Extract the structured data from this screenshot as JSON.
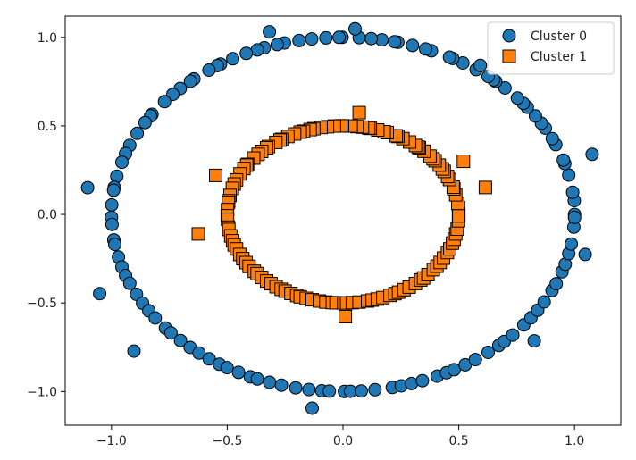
{
  "chart_data": {
    "type": "scatter",
    "title": "",
    "xlabel": "",
    "ylabel": "",
    "xlim": [
      -1.2,
      1.2
    ],
    "ylim": [
      -1.19,
      1.12
    ],
    "xticks": [
      -1.0,
      -0.5,
      0.0,
      0.5,
      1.0
    ],
    "xtick_labels": [
      "−1.0",
      "−0.5",
      "0.0",
      "0.5",
      "1.0"
    ],
    "yticks": [
      -1.0,
      -0.5,
      0.0,
      0.5,
      1.0
    ],
    "ytick_labels": [
      "−1.0",
      "−0.5",
      "0.0",
      "0.5",
      "1.0"
    ],
    "grid": false,
    "legend_position": "top-right",
    "series": [
      {
        "name": "Cluster 0",
        "marker": "circle",
        "color": "#1f77b4",
        "points": [
          [
            1.0,
            0.0
          ],
          [
            0.999,
            0.078
          ],
          [
            0.992,
            0.125
          ],
          [
            0.975,
            0.222
          ],
          [
            0.958,
            0.287
          ],
          [
            0.952,
            0.307
          ],
          [
            0.919,
            0.394
          ],
          [
            0.904,
            0.428
          ],
          [
            0.874,
            0.487
          ],
          [
            0.857,
            0.515
          ],
          [
            0.831,
            0.556
          ],
          [
            0.796,
            0.605
          ],
          [
            0.779,
            0.627
          ],
          [
            0.753,
            0.657
          ],
          [
            0.7,
            0.714
          ],
          [
            0.66,
            0.751
          ],
          [
            0.651,
            0.76
          ],
          [
            0.627,
            0.779
          ],
          [
            0.575,
            0.818
          ],
          [
            0.518,
            0.855
          ],
          [
            0.474,
            0.881
          ],
          [
            0.46,
            0.888
          ],
          [
            0.382,
            0.924
          ],
          [
            0.357,
            0.934
          ],
          [
            0.3,
            0.954
          ],
          [
            0.237,
            0.972
          ],
          [
            0.223,
            0.975
          ],
          [
            0.168,
            0.986
          ],
          [
            0.122,
            0.993
          ],
          [
            0.07,
            0.998
          ],
          [
            -0.004,
            1.0
          ],
          [
            -0.017,
            1.0
          ],
          [
            -0.074,
            0.997
          ],
          [
            -0.135,
            0.991
          ],
          [
            -0.19,
            0.982
          ],
          [
            -0.253,
            0.968
          ],
          [
            -0.284,
            0.959
          ],
          [
            -0.34,
            0.941
          ],
          [
            -0.37,
            0.929
          ],
          [
            -0.418,
            0.909
          ],
          [
            -0.476,
            0.879
          ],
          [
            -0.529,
            0.849
          ],
          [
            -0.543,
            0.84
          ],
          [
            -0.579,
            0.815
          ],
          [
            -0.644,
            0.765
          ],
          [
            -0.659,
            0.752
          ],
          [
            -0.703,
            0.711
          ],
          [
            -0.735,
            0.678
          ],
          [
            -0.771,
            0.637
          ],
          [
            -0.825,
            0.565
          ],
          [
            -0.831,
            0.556
          ],
          [
            -0.855,
            0.519
          ],
          [
            -0.889,
            0.458
          ],
          [
            -0.921,
            0.39
          ],
          [
            -0.939,
            0.344
          ],
          [
            -0.955,
            0.295
          ],
          [
            -0.977,
            0.215
          ],
          [
            -0.988,
            0.153
          ],
          [
            -0.991,
            0.137
          ],
          [
            -0.999,
            0.054
          ],
          [
            -1.0,
            -0.016
          ],
          [
            -0.998,
            -0.056
          ],
          [
            -0.99,
            -0.144
          ],
          [
            -0.986,
            -0.169
          ],
          [
            -0.97,
            -0.241
          ],
          [
            -0.955,
            -0.297
          ],
          [
            -0.939,
            -0.345
          ],
          [
            -0.921,
            -0.389
          ],
          [
            -0.892,
            -0.451
          ],
          [
            -0.866,
            -0.501
          ],
          [
            -0.839,
            -0.544
          ],
          [
            -0.811,
            -0.585
          ],
          [
            -0.767,
            -0.642
          ],
          [
            -0.743,
            -0.669
          ],
          [
            -0.702,
            -0.712
          ],
          [
            -0.66,
            -0.751
          ],
          [
            -0.622,
            -0.783
          ],
          [
            -0.578,
            -0.816
          ],
          [
            -0.534,
            -0.846
          ],
          [
            -0.501,
            -0.865
          ],
          [
            -0.451,
            -0.892
          ],
          [
            -0.4,
            -0.917
          ],
          [
            -0.37,
            -0.929
          ],
          [
            -0.317,
            -0.948
          ],
          [
            -0.266,
            -0.964
          ],
          [
            -0.204,
            -0.979
          ],
          [
            -0.147,
            -0.989
          ],
          [
            -0.092,
            -0.996
          ],
          [
            -0.059,
            -0.998
          ],
          [
            0.006,
            -1.0
          ],
          [
            0.032,
            -0.999
          ],
          [
            0.079,
            -0.997
          ],
          [
            0.138,
            -0.99
          ],
          [
            0.213,
            -0.977
          ],
          [
            0.252,
            -0.968
          ],
          [
            0.296,
            -0.955
          ],
          [
            0.343,
            -0.939
          ],
          [
            0.407,
            -0.913
          ],
          [
            0.447,
            -0.894
          ],
          [
            0.48,
            -0.877
          ],
          [
            0.528,
            -0.849
          ],
          [
            0.572,
            -0.82
          ],
          [
            0.627,
            -0.779
          ],
          [
            0.673,
            -0.74
          ],
          [
            0.697,
            -0.717
          ],
          [
            0.733,
            -0.681
          ],
          [
            0.781,
            -0.624
          ],
          [
            0.812,
            -0.584
          ],
          [
            0.841,
            -0.541
          ],
          [
            0.869,
            -0.494
          ],
          [
            0.903,
            -0.43
          ],
          [
            0.921,
            -0.391
          ],
          [
            0.946,
            -0.324
          ],
          [
            0.96,
            -0.281
          ],
          [
            0.975,
            -0.221
          ],
          [
            0.986,
            -0.167
          ],
          [
            0.997,
            -0.072
          ],
          [
            1.0,
            -0.017
          ],
          [
            1.076,
            0.339
          ],
          [
            -1.103,
            0.151
          ],
          [
            0.593,
            0.841
          ],
          [
            0.052,
            1.048
          ],
          [
            -0.318,
            1.031
          ],
          [
            -0.903,
            -0.772
          ],
          [
            -0.133,
            -1.094
          ],
          [
            0.826,
            -0.714
          ],
          [
            1.046,
            -0.226
          ],
          [
            -1.051,
            -0.447
          ]
        ]
      },
      {
        "name": "Cluster 1",
        "marker": "square",
        "color": "#ff7f0e",
        "points": [
          [
            0.5,
            0.0
          ],
          [
            0.499,
            0.039
          ],
          [
            0.496,
            0.062
          ],
          [
            0.487,
            0.111
          ],
          [
            0.479,
            0.144
          ],
          [
            0.476,
            0.154
          ],
          [
            0.46,
            0.197
          ],
          [
            0.452,
            0.214
          ],
          [
            0.437,
            0.243
          ],
          [
            0.429,
            0.257
          ],
          [
            0.416,
            0.278
          ],
          [
            0.398,
            0.303
          ],
          [
            0.389,
            0.314
          ],
          [
            0.376,
            0.329
          ],
          [
            0.35,
            0.357
          ],
          [
            0.33,
            0.376
          ],
          [
            0.325,
            0.38
          ],
          [
            0.313,
            0.389
          ],
          [
            0.288,
            0.409
          ],
          [
            0.259,
            0.428
          ],
          [
            0.237,
            0.44
          ],
          [
            0.23,
            0.444
          ],
          [
            0.191,
            0.462
          ],
          [
            0.178,
            0.467
          ],
          [
            0.15,
            0.477
          ],
          [
            0.118,
            0.486
          ],
          [
            0.111,
            0.488
          ],
          [
            0.084,
            0.493
          ],
          [
            0.061,
            0.496
          ],
          [
            0.035,
            0.499
          ],
          [
            -0.002,
            0.5
          ],
          [
            -0.009,
            0.5
          ],
          [
            -0.037,
            0.499
          ],
          [
            -0.067,
            0.495
          ],
          [
            -0.095,
            0.491
          ],
          [
            -0.126,
            0.484
          ],
          [
            -0.142,
            0.479
          ],
          [
            -0.17,
            0.47
          ],
          [
            -0.185,
            0.465
          ],
          [
            -0.209,
            0.454
          ],
          [
            -0.238,
            0.44
          ],
          [
            -0.265,
            0.424
          ],
          [
            -0.272,
            0.42
          ],
          [
            -0.29,
            0.407
          ],
          [
            -0.322,
            0.383
          ],
          [
            -0.33,
            0.376
          ],
          [
            -0.351,
            0.356
          ],
          [
            -0.367,
            0.339
          ],
          [
            -0.386,
            0.318
          ],
          [
            -0.412,
            0.283
          ],
          [
            -0.416,
            0.278
          ],
          [
            -0.428,
            0.259
          ],
          [
            -0.445,
            0.229
          ],
          [
            -0.46,
            0.195
          ],
          [
            -0.47,
            0.172
          ],
          [
            -0.478,
            0.147
          ],
          [
            -0.488,
            0.107
          ],
          [
            -0.494,
            0.077
          ],
          [
            -0.495,
            0.068
          ],
          [
            -0.499,
            0.027
          ],
          [
            -0.5,
            -0.008
          ],
          [
            -0.499,
            -0.028
          ],
          [
            -0.495,
            -0.072
          ],
          [
            -0.493,
            -0.085
          ],
          [
            -0.485,
            -0.121
          ],
          [
            -0.477,
            -0.149
          ],
          [
            -0.47,
            -0.172
          ],
          [
            -0.46,
            -0.195
          ],
          [
            -0.446,
            -0.226
          ],
          [
            -0.433,
            -0.25
          ],
          [
            -0.419,
            -0.272
          ],
          [
            -0.406,
            -0.293
          ],
          [
            -0.383,
            -0.321
          ],
          [
            -0.371,
            -0.334
          ],
          [
            -0.351,
            -0.356
          ],
          [
            -0.33,
            -0.376
          ],
          [
            -0.311,
            -0.391
          ],
          [
            -0.289,
            -0.408
          ],
          [
            -0.267,
            -0.423
          ],
          [
            -0.25,
            -0.433
          ],
          [
            -0.225,
            -0.446
          ],
          [
            -0.2,
            -0.458
          ],
          [
            -0.185,
            -0.465
          ],
          [
            -0.159,
            -0.474
          ],
          [
            -0.133,
            -0.482
          ],
          [
            -0.102,
            -0.489
          ],
          [
            -0.074,
            -0.495
          ],
          [
            -0.046,
            -0.498
          ],
          [
            -0.03,
            -0.499
          ],
          [
            0.003,
            -0.5
          ],
          [
            0.016,
            -0.5
          ],
          [
            0.04,
            -0.498
          ],
          [
            0.069,
            -0.495
          ],
          [
            0.106,
            -0.489
          ],
          [
            0.126,
            -0.484
          ],
          [
            0.148,
            -0.478
          ],
          [
            0.172,
            -0.47
          ],
          [
            0.203,
            -0.457
          ],
          [
            0.224,
            -0.447
          ],
          [
            0.24,
            -0.439
          ],
          [
            0.264,
            -0.425
          ],
          [
            0.286,
            -0.41
          ],
          [
            0.313,
            -0.39
          ],
          [
            0.336,
            -0.37
          ],
          [
            0.348,
            -0.359
          ],
          [
            0.367,
            -0.34
          ],
          [
            0.39,
            -0.312
          ],
          [
            0.406,
            -0.292
          ],
          [
            0.42,
            -0.271
          ],
          [
            0.434,
            -0.247
          ],
          [
            0.451,
            -0.215
          ],
          [
            0.461,
            -0.195
          ],
          [
            0.473,
            -0.162
          ],
          [
            0.48,
            -0.14
          ],
          [
            0.487,
            -0.11
          ],
          [
            0.493,
            -0.083
          ],
          [
            0.499,
            -0.036
          ],
          [
            0.5,
            -0.009
          ],
          [
            -0.625,
            -0.11
          ],
          [
            0.615,
            0.152
          ],
          [
            0.07,
            0.575
          ],
          [
            0.01,
            -0.577
          ],
          [
            0.52,
            0.3
          ],
          [
            -0.55,
            0.22
          ]
        ]
      }
    ]
  }
}
